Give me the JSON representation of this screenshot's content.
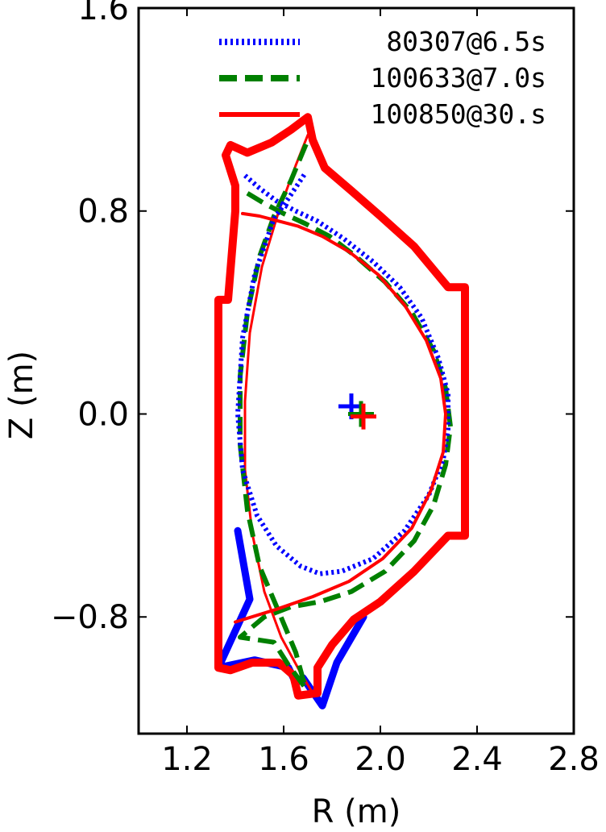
{
  "chart_data": {
    "type": "line",
    "xlabel": "R (m)",
    "ylabel": "Z (m)",
    "xlim": [
      1.0,
      2.8
    ],
    "ylim": [
      -1.26,
      1.6
    ],
    "x_ticks": [
      "1.2",
      "1.6",
      "2.0",
      "2.4",
      "2.8"
    ],
    "y_ticks": [
      "1.6",
      "0.8",
      "0.0",
      "−0.8"
    ],
    "x_tick_values": [
      1.2,
      1.6,
      2.0,
      2.4,
      2.8
    ],
    "y_tick_values": [
      1.6,
      0.8,
      0.0,
      -0.8
    ],
    "grid": false,
    "legend_position": "top-right",
    "series": [
      {
        "name": "80307@6.5s",
        "color": "#0000ff",
        "style": "dotted",
        "plasma_boundary": [
          [
            1.44,
            0.94
          ],
          [
            1.5,
            0.89
          ],
          [
            1.57,
            0.84
          ],
          [
            1.65,
            0.8
          ],
          [
            1.74,
            0.76
          ],
          [
            1.85,
            0.69
          ],
          [
            1.97,
            0.6
          ],
          [
            2.08,
            0.5
          ],
          [
            2.17,
            0.38
          ],
          [
            2.24,
            0.22
          ],
          [
            2.28,
            0.08
          ],
          [
            2.28,
            -0.06
          ],
          [
            2.26,
            -0.18
          ],
          [
            2.2,
            -0.32
          ],
          [
            2.1,
            -0.46
          ],
          [
            1.97,
            -0.57
          ],
          [
            1.84,
            -0.62
          ],
          [
            1.75,
            -0.63
          ],
          [
            1.67,
            -0.6
          ],
          [
            1.57,
            -0.52
          ],
          [
            1.49,
            -0.4
          ],
          [
            1.43,
            -0.22
          ],
          [
            1.41,
            0.0
          ],
          [
            1.43,
            0.3
          ],
          [
            1.48,
            0.55
          ],
          [
            1.56,
            0.77
          ],
          [
            1.62,
            0.85
          ],
          [
            1.69,
            0.95
          ]
        ],
        "axis_marker": [
          1.88,
          0.03
        ],
        "wall_extra": [
          [
            1.41,
            -0.46
          ],
          [
            1.46,
            -0.73
          ],
          [
            1.33,
            -1.0
          ],
          [
            1.48,
            -0.97
          ],
          [
            1.62,
            -1.0
          ],
          [
            1.65,
            -1.06
          ],
          [
            1.68,
            -1.04
          ],
          [
            1.76,
            -1.15
          ],
          [
            1.82,
            -0.98
          ],
          [
            1.93,
            -0.8
          ]
        ]
      },
      {
        "name": "100633@7.0s",
        "color": "#008000",
        "style": "dashed",
        "plasma_boundary": [
          [
            1.45,
            0.87
          ],
          [
            1.52,
            0.83
          ],
          [
            1.6,
            0.79
          ],
          [
            1.69,
            0.75
          ],
          [
            1.79,
            0.7
          ],
          [
            1.9,
            0.62
          ],
          [
            2.02,
            0.52
          ],
          [
            2.13,
            0.4
          ],
          [
            2.22,
            0.25
          ],
          [
            2.27,
            0.1
          ],
          [
            2.29,
            -0.05
          ],
          [
            2.27,
            -0.2
          ],
          [
            2.22,
            -0.36
          ],
          [
            2.14,
            -0.5
          ],
          [
            2.02,
            -0.62
          ],
          [
            1.88,
            -0.7
          ],
          [
            1.75,
            -0.74
          ],
          [
            1.63,
            -0.76
          ],
          [
            1.52,
            -0.8
          ],
          [
            1.42,
            -0.88
          ],
          [
            1.56,
            -0.9
          ],
          [
            1.62,
            -0.99
          ],
          [
            1.69,
            -1.08
          ],
          [
            1.65,
            -0.94
          ],
          [
            1.58,
            -0.78
          ],
          [
            1.5,
            -0.6
          ],
          [
            1.45,
            -0.38
          ],
          [
            1.42,
            -0.12
          ],
          [
            1.42,
            0.15
          ],
          [
            1.45,
            0.4
          ],
          [
            1.5,
            0.62
          ],
          [
            1.56,
            0.78
          ],
          [
            1.63,
            0.92
          ],
          [
            1.7,
            1.08
          ]
        ],
        "axis_marker": [
          1.92,
          0.0
        ]
      },
      {
        "name": "100850@30.s",
        "color": "#ff0000",
        "style": "solid",
        "plasma_boundary": [
          [
            1.43,
            0.79
          ],
          [
            1.5,
            0.78
          ],
          [
            1.58,
            0.76
          ],
          [
            1.66,
            0.74
          ],
          [
            1.76,
            0.7
          ],
          [
            1.87,
            0.64
          ],
          [
            1.99,
            0.55
          ],
          [
            2.1,
            0.43
          ],
          [
            2.19,
            0.29
          ],
          [
            2.25,
            0.14
          ],
          [
            2.27,
            0.0
          ],
          [
            2.26,
            -0.15
          ],
          [
            2.21,
            -0.3
          ],
          [
            2.13,
            -0.45
          ],
          [
            2.01,
            -0.57
          ],
          [
            1.87,
            -0.66
          ],
          [
            1.72,
            -0.72
          ],
          [
            1.57,
            -0.77
          ],
          [
            1.4,
            -0.82
          ]
        ],
        "separatrix": [
          [
            1.7,
            1.1
          ],
          [
            1.65,
            0.98
          ],
          [
            1.58,
            0.8
          ],
          [
            1.51,
            0.58
          ],
          [
            1.46,
            0.32
          ],
          [
            1.44,
            0.05
          ],
          [
            1.44,
            -0.22
          ],
          [
            1.47,
            -0.47
          ],
          [
            1.52,
            -0.7
          ],
          [
            1.59,
            -0.88
          ],
          [
            1.67,
            -1.02
          ],
          [
            1.72,
            -1.1
          ]
        ],
        "axis_marker": [
          1.93,
          -0.01
        ],
        "wall": [
          [
            1.7,
            1.17
          ],
          [
            1.72,
            1.08
          ],
          [
            1.77,
            0.97
          ],
          [
            1.88,
            0.88
          ],
          [
            2.0,
            0.78
          ],
          [
            2.14,
            0.66
          ],
          [
            2.28,
            0.5
          ],
          [
            2.35,
            0.5
          ],
          [
            2.35,
            -0.48
          ],
          [
            2.28,
            -0.48
          ],
          [
            2.14,
            -0.62
          ],
          [
            2.0,
            -0.74
          ],
          [
            1.89,
            -0.81
          ],
          [
            1.8,
            -0.91
          ],
          [
            1.74,
            -1.0
          ],
          [
            1.74,
            -1.1
          ],
          [
            1.66,
            -1.11
          ],
          [
            1.64,
            -1.03
          ],
          [
            1.58,
            -0.98
          ],
          [
            1.47,
            -0.98
          ],
          [
            1.38,
            -1.01
          ],
          [
            1.33,
            -1.0
          ],
          [
            1.33,
            -0.47
          ],
          [
            1.33,
            0.45
          ],
          [
            1.37,
            0.45
          ],
          [
            1.4,
            0.8
          ],
          [
            1.4,
            0.9
          ],
          [
            1.36,
            1.02
          ],
          [
            1.38,
            1.06
          ],
          [
            1.45,
            1.03
          ],
          [
            1.55,
            1.07
          ],
          [
            1.63,
            1.12
          ],
          [
            1.7,
            1.17
          ]
        ]
      }
    ]
  }
}
